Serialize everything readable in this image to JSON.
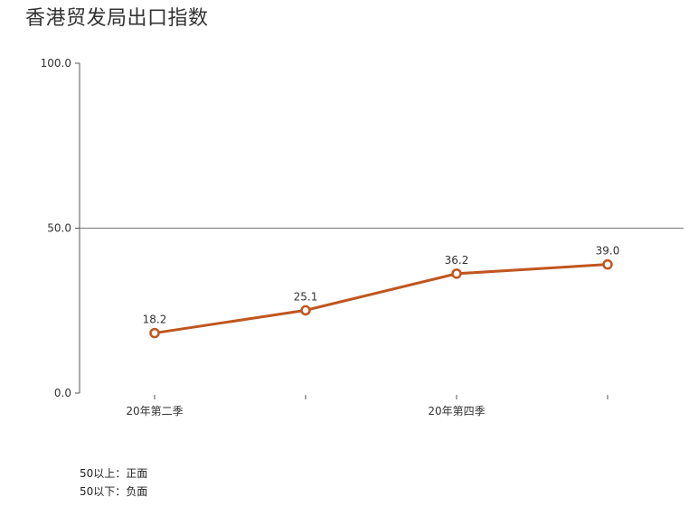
{
  "title": "香港贸发局出口指数",
  "chart_data": {
    "type": "line",
    "categories": [
      "20年第二季",
      "",
      "20年第四季",
      ""
    ],
    "values": [
      18.2,
      25.1,
      36.2,
      39.0
    ],
    "data_labels": [
      "18.2",
      "25.1",
      "36.2",
      "39.0"
    ],
    "y_ticks": [
      "0.0",
      "50.0",
      "100.0"
    ],
    "ylim": [
      0,
      100
    ],
    "reference_line": 50,
    "line_color": "#C0561F",
    "grid": false
  },
  "notes": [
    "50以上：正面",
    "50以下：负面"
  ]
}
